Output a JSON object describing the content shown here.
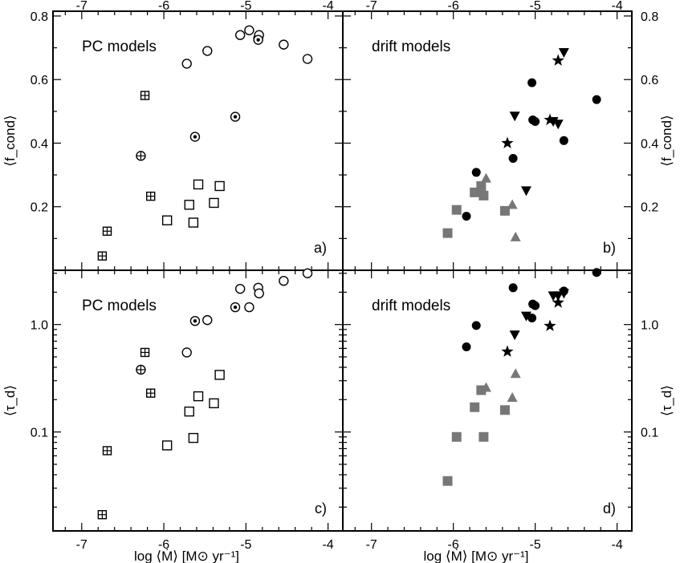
{
  "chart_data": [
    {
      "panel": "a",
      "type": "scatter",
      "title": "PC models",
      "letter": "a)",
      "xlim": [
        -7.35,
        -3.82
      ],
      "ylim": [
        0.0,
        0.815
      ],
      "yscale": "linear",
      "xticks": [
        "-7",
        "-6",
        "-5",
        "-4"
      ],
      "yticks": [
        "0.2",
        "0.4",
        "0.6",
        "0.8"
      ],
      "series": [
        {
          "marker": "open-circle",
          "points": [
            [
              -5.72,
              0.65
            ],
            [
              -5.47,
              0.69
            ],
            [
              -5.07,
              0.74
            ],
            [
              -4.96,
              0.755
            ],
            [
              -4.85,
              0.73
            ],
            [
              -4.84,
              0.74
            ],
            [
              -4.54,
              0.71
            ],
            [
              -4.25,
              0.665
            ]
          ]
        },
        {
          "marker": "dotted-circle",
          "points": [
            [
              -5.62,
              0.42
            ],
            [
              -5.13,
              0.483
            ],
            [
              -4.85,
              0.725
            ]
          ]
        },
        {
          "marker": "cross-circle",
          "points": [
            [
              -6.28,
              0.36
            ]
          ]
        },
        {
          "marker": "crossed-square",
          "points": [
            [
              -6.75,
              0.045
            ],
            [
              -6.69,
              0.123
            ],
            [
              -6.23,
              0.55
            ],
            [
              -6.16,
              0.233
            ]
          ]
        },
        {
          "marker": "open-square",
          "points": [
            [
              -5.96,
              0.157
            ],
            [
              -5.69,
              0.206
            ],
            [
              -5.64,
              0.15
            ],
            [
              -5.58,
              0.27
            ],
            [
              -5.39,
              0.212
            ],
            [
              -5.32,
              0.265
            ]
          ]
        }
      ]
    },
    {
      "panel": "b",
      "type": "scatter",
      "title": "drift models",
      "letter": "b)",
      "xlim": [
        -7.35,
        -3.82
      ],
      "ylim": [
        0.0,
        0.815
      ],
      "yscale": "linear",
      "xticks": [
        "-7",
        "-6",
        "-5",
        "-4"
      ],
      "yticks": [
        "0.2",
        "0.4",
        "0.6",
        "0.8"
      ],
      "ylabel": "⟨f_cond⟩",
      "series": [
        {
          "marker": "filled-circle",
          "color": "#000000",
          "points": [
            [
              -5.84,
              0.17
            ],
            [
              -5.72,
              0.308
            ],
            [
              -5.27,
              0.352
            ],
            [
              -5.04,
              0.59
            ],
            [
              -5.03,
              0.473
            ],
            [
              -5.0,
              0.468
            ],
            [
              -4.65,
              0.408
            ],
            [
              -4.25,
              0.537
            ]
          ]
        },
        {
          "marker": "filled-triangle-down",
          "color": "#000000",
          "points": [
            [
              -5.25,
              0.485
            ],
            [
              -5.11,
              0.25
            ],
            [
              -4.78,
              0.468
            ],
            [
              -4.72,
              0.46
            ],
            [
              -4.65,
              0.685
            ]
          ]
        },
        {
          "marker": "filled-star",
          "color": "#000000",
          "points": [
            [
              -5.34,
              0.4
            ],
            [
              -4.82,
              0.473
            ],
            [
              -4.72,
              0.66
            ]
          ]
        },
        {
          "marker": "filled-square",
          "color": "#777777",
          "points": [
            [
              -6.07,
              0.117
            ],
            [
              -5.96,
              0.19
            ],
            [
              -5.74,
              0.245
            ],
            [
              -5.66,
              0.265
            ],
            [
              -5.63,
              0.235
            ],
            [
              -5.37,
              0.187
            ]
          ]
        },
        {
          "marker": "filled-triangle-up",
          "color": "#777777",
          "points": [
            [
              -5.6,
              0.29
            ],
            [
              -5.28,
              0.207
            ],
            [
              -5.24,
              0.105
            ]
          ]
        }
      ]
    },
    {
      "panel": "c",
      "type": "scatter",
      "title": "PC models",
      "letter": "c)",
      "xlim": [
        -7.35,
        -3.82
      ],
      "ylim": [
        0.012,
        3.2
      ],
      "yscale": "log",
      "xticks": [
        "-7",
        "-6",
        "-5",
        "-4"
      ],
      "yticks": [
        "0.1",
        "1.0"
      ],
      "xlabel": "log ⟨Ṁ⟩ [M⊙ yr⁻¹]",
      "series": [
        {
          "marker": "open-circle",
          "points": [
            [
              -5.72,
              0.55
            ],
            [
              -5.47,
              1.1
            ],
            [
              -5.07,
              2.15
            ],
            [
              -4.96,
              1.45
            ],
            [
              -4.85,
              2.2
            ],
            [
              -4.84,
              1.95
            ],
            [
              -4.54,
              2.55
            ],
            [
              -4.25,
              3.0
            ]
          ]
        },
        {
          "marker": "dotted-circle",
          "points": [
            [
              -5.62,
              1.08
            ],
            [
              -5.13,
              1.45
            ]
          ]
        },
        {
          "marker": "cross-circle",
          "points": [
            [
              -6.28,
              0.38
            ]
          ]
        },
        {
          "marker": "crossed-square",
          "points": [
            [
              -6.75,
              0.017
            ],
            [
              -6.69,
              0.067
            ],
            [
              -6.23,
              0.55
            ],
            [
              -6.16,
              0.23
            ]
          ]
        },
        {
          "marker": "open-square",
          "points": [
            [
              -5.96,
              0.075
            ],
            [
              -5.69,
              0.155
            ],
            [
              -5.64,
              0.088
            ],
            [
              -5.58,
              0.215
            ],
            [
              -5.39,
              0.185
            ],
            [
              -5.32,
              0.34
            ]
          ]
        }
      ]
    },
    {
      "panel": "d",
      "type": "scatter",
      "title": "drift models",
      "letter": "d)",
      "xlim": [
        -7.35,
        -3.82
      ],
      "ylim": [
        0.012,
        3.2
      ],
      "yscale": "log",
      "xticks": [
        "-7",
        "-6",
        "-5",
        "-4"
      ],
      "yticks": [
        "0.1",
        "1.0"
      ],
      "xlabel": "log ⟨Ṁ⟩ [M⊙ yr⁻¹]",
      "ylabel": "⟨τ_d⟩",
      "series": [
        {
          "marker": "filled-circle",
          "color": "#000000",
          "points": [
            [
              -5.84,
              0.62
            ],
            [
              -5.72,
              0.98
            ],
            [
              -5.27,
              2.2
            ],
            [
              -5.04,
              1.15
            ],
            [
              -5.03,
              1.55
            ],
            [
              -5.0,
              1.5
            ],
            [
              -4.65,
              2.05
            ],
            [
              -4.25,
              3.05
            ]
          ]
        },
        {
          "marker": "filled-triangle-down",
          "color": "#000000",
          "points": [
            [
              -5.25,
              0.8
            ],
            [
              -5.11,
              1.2
            ],
            [
              -4.78,
              1.85
            ],
            [
              -4.72,
              1.85
            ],
            [
              -4.65,
              1.95
            ]
          ]
        },
        {
          "marker": "filled-star",
          "color": "#000000",
          "points": [
            [
              -5.34,
              0.56
            ],
            [
              -4.82,
              0.97
            ],
            [
              -4.72,
              1.6
            ]
          ]
        },
        {
          "marker": "filled-square",
          "color": "#777777",
          "points": [
            [
              -6.07,
              0.035
            ],
            [
              -5.96,
              0.09
            ],
            [
              -5.74,
              0.17
            ],
            [
              -5.66,
              0.245
            ],
            [
              -5.63,
              0.09
            ],
            [
              -5.37,
              0.16
            ]
          ]
        },
        {
          "marker": "filled-triangle-up",
          "color": "#777777",
          "points": [
            [
              -5.6,
              0.26
            ],
            [
              -5.28,
              0.21
            ],
            [
              -5.24,
              0.35
            ]
          ]
        }
      ]
    }
  ]
}
